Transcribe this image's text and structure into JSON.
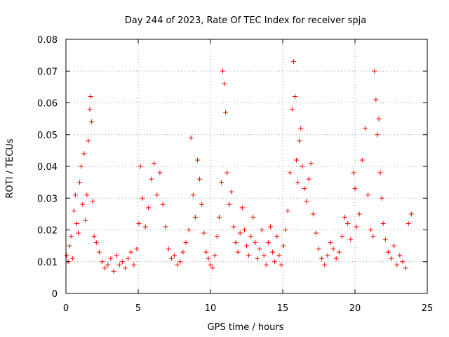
{
  "chart_data": {
    "type": "scatter",
    "title": "Day 244 of 2023, Rate Of TEC Index for receiver spja",
    "xlabel": "GPS time / hours",
    "ylabel": "ROTI / TECUs",
    "xlim": [
      0,
      25
    ],
    "ylim": [
      0,
      0.08
    ],
    "xticks": [
      0,
      5,
      10,
      15,
      20,
      25
    ],
    "xtick_labels": [
      "0",
      "5",
      "10",
      "15",
      "20",
      "25"
    ],
    "yticks": [
      0,
      0.01,
      0.02,
      0.03,
      0.04,
      0.05,
      0.06,
      0.07,
      0.08
    ],
    "ytick_labels": [
      "0",
      "0.01",
      "0.02",
      "0.03",
      "0.04",
      "0.05",
      "0.06",
      "0.07",
      "0.08"
    ],
    "grid": true,
    "marker": "+",
    "marker_color": "#ff0000",
    "series": [
      {
        "name": "ROTI",
        "x": [
          0.05,
          0.15,
          0.25,
          0.35,
          0.45,
          0.55,
          0.65,
          0.75,
          0.85,
          0.95,
          1.05,
          1.15,
          1.25,
          1.35,
          1.45,
          1.55,
          1.65,
          1.72,
          1.78,
          1.85,
          1.95,
          2.1,
          2.3,
          2.5,
          2.7,
          2.9,
          3.1,
          3.3,
          3.5,
          3.7,
          3.9,
          4.1,
          4.3,
          4.5,
          4.7,
          4.9,
          5.05,
          5.15,
          5.3,
          5.5,
          5.7,
          5.9,
          6.1,
          6.3,
          6.5,
          6.7,
          6.9,
          7.1,
          7.3,
          7.5,
          7.7,
          7.9,
          8.1,
          8.3,
          8.5,
          8.65,
          8.8,
          8.95,
          9.1,
          9.25,
          9.4,
          9.55,
          9.7,
          9.85,
          10.0,
          10.15,
          10.3,
          10.45,
          10.6,
          10.75,
          10.85,
          10.95,
          11.05,
          11.15,
          11.3,
          11.45,
          11.6,
          11.75,
          11.9,
          12.05,
          12.2,
          12.35,
          12.5,
          12.65,
          12.8,
          12.95,
          13.1,
          13.25,
          13.4,
          13.55,
          13.7,
          13.85,
          14.0,
          14.15,
          14.3,
          14.45,
          14.6,
          14.75,
          14.9,
          15.05,
          15.2,
          15.35,
          15.5,
          15.65,
          15.75,
          15.85,
          15.95,
          16.05,
          16.15,
          16.25,
          16.35,
          16.5,
          16.65,
          16.8,
          16.95,
          17.1,
          17.3,
          17.5,
          17.7,
          17.9,
          18.1,
          18.3,
          18.5,
          18.7,
          18.9,
          19.1,
          19.3,
          19.5,
          19.7,
          19.9,
          20.0,
          20.1,
          20.3,
          20.5,
          20.7,
          20.9,
          21.1,
          21.25,
          21.35,
          21.45,
          21.55,
          21.65,
          21.75,
          21.85,
          21.95,
          22.1,
          22.3,
          22.5,
          22.7,
          22.9,
          23.1,
          23.3,
          23.5,
          23.7,
          23.9
        ],
        "y": [
          0.012,
          0.01,
          0.015,
          0.018,
          0.011,
          0.026,
          0.031,
          0.022,
          0.019,
          0.035,
          0.04,
          0.028,
          0.044,
          0.023,
          0.031,
          0.048,
          0.058,
          0.062,
          0.054,
          0.029,
          0.018,
          0.016,
          0.013,
          0.01,
          0.008,
          0.009,
          0.011,
          0.007,
          0.012,
          0.009,
          0.01,
          0.008,
          0.011,
          0.013,
          0.009,
          0.014,
          0.022,
          0.04,
          0.03,
          0.021,
          0.027,
          0.036,
          0.041,
          0.031,
          0.038,
          0.028,
          0.021,
          0.014,
          0.011,
          0.012,
          0.009,
          0.01,
          0.013,
          0.016,
          0.02,
          0.049,
          0.031,
          0.024,
          0.042,
          0.036,
          0.028,
          0.019,
          0.013,
          0.011,
          0.009,
          0.008,
          0.012,
          0.018,
          0.024,
          0.035,
          0.07,
          0.066,
          0.057,
          0.038,
          0.028,
          0.032,
          0.021,
          0.016,
          0.013,
          0.019,
          0.027,
          0.02,
          0.015,
          0.012,
          0.018,
          0.024,
          0.016,
          0.011,
          0.014,
          0.02,
          0.012,
          0.009,
          0.016,
          0.021,
          0.013,
          0.01,
          0.018,
          0.012,
          0.009,
          0.015,
          0.02,
          0.026,
          0.038,
          0.058,
          0.073,
          0.062,
          0.042,
          0.035,
          0.048,
          0.052,
          0.04,
          0.033,
          0.029,
          0.036,
          0.041,
          0.025,
          0.019,
          0.014,
          0.011,
          0.009,
          0.012,
          0.016,
          0.014,
          0.011,
          0.013,
          0.018,
          0.024,
          0.022,
          0.017,
          0.038,
          0.033,
          0.021,
          0.025,
          0.042,
          0.052,
          0.031,
          0.02,
          0.018,
          0.07,
          0.061,
          0.05,
          0.055,
          0.038,
          0.03,
          0.022,
          0.017,
          0.013,
          0.011,
          0.015,
          0.009,
          0.012,
          0.01,
          0.008,
          0.022,
          0.025
        ]
      }
    ]
  }
}
